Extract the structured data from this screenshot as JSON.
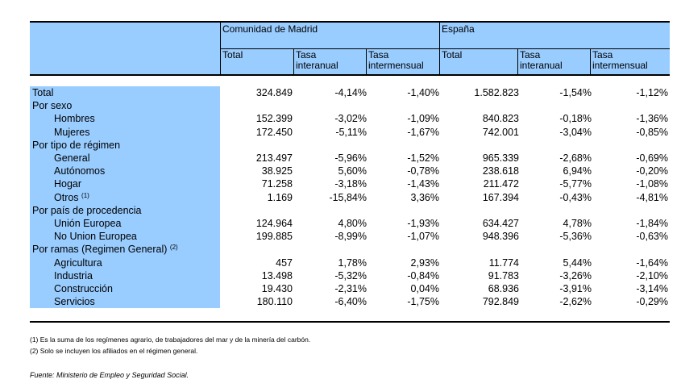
{
  "header": {
    "region_madrid": "Comunidad de Madrid",
    "region_espana": "España",
    "col_total": "Total",
    "col_interanual_1": "Tasa",
    "col_interanual_2": "interanual",
    "col_intermensual_1": "Tasa",
    "col_intermensual_2": "intermensual"
  },
  "rows": [
    {
      "label": "Total",
      "indent": false,
      "note": "",
      "values": [
        "324.849",
        "-4,14%",
        "-1,40%",
        "1.582.823",
        "-1,54%",
        "-1,12%"
      ]
    },
    {
      "label": "Por sexo",
      "indent": false,
      "note": "",
      "values": [
        "",
        "",
        "",
        "",
        "",
        ""
      ]
    },
    {
      "label": "Hombres",
      "indent": true,
      "note": "",
      "values": [
        "152.399",
        "-3,02%",
        "-1,09%",
        "840.823",
        "-0,18%",
        "-1,36%"
      ]
    },
    {
      "label": "Mujeres",
      "indent": true,
      "note": "",
      "values": [
        "172.450",
        "-5,11%",
        "-1,67%",
        "742.001",
        "-3,04%",
        "-0,85%"
      ]
    },
    {
      "label": "Por tipo de régimen",
      "indent": false,
      "note": "",
      "values": [
        "",
        "",
        "",
        "",
        "",
        ""
      ]
    },
    {
      "label": "General",
      "indent": true,
      "note": "",
      "values": [
        "213.497",
        "-5,96%",
        "-1,52%",
        "965.339",
        "-2,68%",
        "-0,69%"
      ]
    },
    {
      "label": "Autónomos",
      "indent": true,
      "note": "",
      "values": [
        "38.925",
        "5,60%",
        "-0,78%",
        "238.618",
        "6,94%",
        "-0,20%"
      ]
    },
    {
      "label": "Hogar",
      "indent": true,
      "note": "",
      "values": [
        "71.258",
        "-3,18%",
        "-1,43%",
        "211.472",
        "-5,77%",
        "-1,08%"
      ]
    },
    {
      "label": "Otros",
      "indent": true,
      "note": "(1)",
      "values": [
        "1.169",
        "-15,84%",
        "3,36%",
        "167.394",
        "-0,43%",
        "-4,81%"
      ]
    },
    {
      "label": "Por país de procedencia",
      "indent": false,
      "note": "",
      "values": [
        "",
        "",
        "",
        "",
        "",
        ""
      ]
    },
    {
      "label": "Unión Europea",
      "indent": true,
      "note": "",
      "values": [
        "124.964",
        "4,80%",
        "-1,93%",
        "634.427",
        "4,78%",
        "-1,84%"
      ]
    },
    {
      "label": "No Union Europea",
      "indent": true,
      "note": "",
      "values": [
        "199.885",
        "-8,99%",
        "-1,07%",
        "948.396",
        "-5,36%",
        "-0,63%"
      ]
    },
    {
      "label": "Por ramas (Regimen General)",
      "indent": false,
      "note": "(2)",
      "values": [
        "",
        "",
        "",
        "",
        "",
        ""
      ]
    },
    {
      "label": "Agricultura",
      "indent": true,
      "note": "",
      "values": [
        "457",
        "1,78%",
        "2,93%",
        "11.774",
        "5,44%",
        "-1,64%"
      ]
    },
    {
      "label": "Industria",
      "indent": true,
      "note": "",
      "values": [
        "13.498",
        "-5,32%",
        "-0,84%",
        "91.783",
        "-3,26%",
        "-2,10%"
      ]
    },
    {
      "label": "Construcción",
      "indent": true,
      "note": "",
      "values": [
        "19.430",
        "-2,31%",
        "0,04%",
        "68.936",
        "-3,91%",
        "-3,14%"
      ]
    },
    {
      "label": "Servicios",
      "indent": true,
      "note": "",
      "values": [
        "180.110",
        "-6,40%",
        "-1,75%",
        "792.849",
        "-2,62%",
        "-0,29%"
      ]
    }
  ],
  "footnotes": {
    "note1": "(1) Es la suma de los regímenes  agrario, de trabajadores del mar y de la minería del carbón.",
    "note2": "(2) Solo se incluyen los afiliados en el régimen general.",
    "source": "Fuente: Ministerio de Empleo y Seguridad Social."
  }
}
